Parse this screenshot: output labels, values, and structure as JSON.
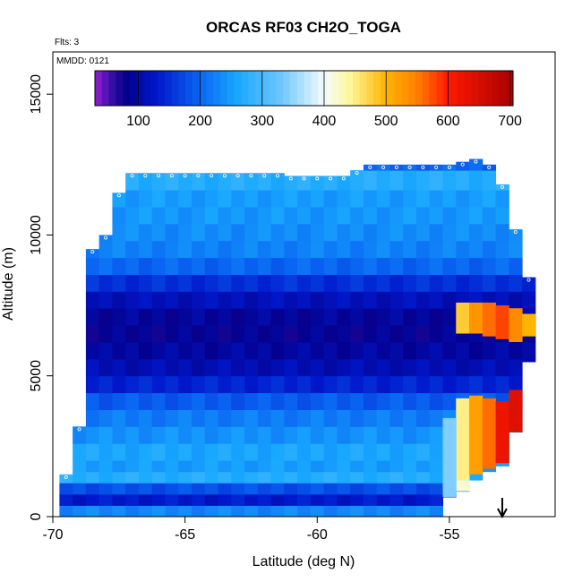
{
  "chart_data": {
    "type": "heatmap",
    "title": "ORCAS RF03 CH2O_TOGA",
    "annotations": [
      "Flts: 3",
      "MMDD: 0121"
    ],
    "xlabel": "Latitude (deg N)",
    "ylabel": "Altitude (m)",
    "xlim": [
      -70,
      -51
    ],
    "ylim": [
      0,
      16500
    ],
    "xticks": [
      -70,
      -65,
      -60,
      -55
    ],
    "yticks": [
      0,
      5000,
      10000,
      15000
    ],
    "legend": "top",
    "grid": false,
    "colorbar": {
      "range": [
        30,
        705
      ],
      "ticks": [
        100,
        200,
        300,
        400,
        500,
        600,
        700
      ],
      "stops": [
        {
          "v": 30,
          "c": "#9a1fd6"
        },
        {
          "v": 55,
          "c": "#3a0fa8"
        },
        {
          "v": 80,
          "c": "#05008c"
        },
        {
          "v": 130,
          "c": "#0018cc"
        },
        {
          "v": 200,
          "c": "#0a66f2"
        },
        {
          "v": 260,
          "c": "#18a8ff"
        },
        {
          "v": 330,
          "c": "#6cc6ff"
        },
        {
          "v": 400,
          "c": "#f2fbff"
        },
        {
          "v": 440,
          "c": "#fff8a0"
        },
        {
          "v": 500,
          "c": "#ffb400"
        },
        {
          "v": 550,
          "c": "#ff8000"
        },
        {
          "v": 600,
          "c": "#ff1a00"
        },
        {
          "v": 705,
          "c": "#a80000"
        }
      ]
    },
    "profile_lat": [
      -69.5,
      -69,
      -68.5,
      -68,
      -67.5,
      -67,
      -66.5,
      -66,
      -65.5,
      -65,
      -64.5,
      -64,
      -63.5,
      -63,
      -62.5,
      -62,
      -61.5,
      -61,
      -60.5,
      -60,
      -59.5,
      -59,
      -58.5,
      -58,
      -57.5,
      -57,
      -56.5,
      -56,
      -55.5,
      -55,
      -54.5,
      -54,
      -53.5,
      -53,
      -52.5,
      -52
    ],
    "profile_top": [
      1500,
      3200,
      9500,
      10000,
      11500,
      12200,
      12200,
      12200,
      12200,
      12200,
      12200,
      12200,
      12200,
      12200,
      12200,
      12200,
      12200,
      12100,
      12100,
      12100,
      12100,
      12100,
      12300,
      12500,
      12500,
      12500,
      12500,
      12500,
      12500,
      12500,
      12600,
      12700,
      12500,
      11800,
      10200,
      8500
    ],
    "profile_bottom": [
      0,
      0,
      0,
      0,
      0,
      0,
      0,
      0,
      0,
      0,
      0,
      0,
      0,
      0,
      0,
      0,
      0,
      0,
      0,
      0,
      0,
      0,
      0,
      0,
      0,
      0,
      0,
      0,
      0,
      700,
      900,
      1300,
      1600,
      1800,
      3000,
      5500
    ],
    "altitude_layers": [
      {
        "z0": 0,
        "z1": 400,
        "value": 230
      },
      {
        "z0": 400,
        "z1": 800,
        "value": 130
      },
      {
        "z0": 800,
        "z1": 1200,
        "value": 180
      },
      {
        "z0": 1200,
        "z1": 1600,
        "value": 270
      },
      {
        "z0": 1600,
        "z1": 2000,
        "value": 250
      },
      {
        "z0": 2000,
        "z1": 2600,
        "value": 260
      },
      {
        "z0": 2600,
        "z1": 3200,
        "value": 240
      },
      {
        "z0": 3200,
        "z1": 3800,
        "value": 220
      },
      {
        "z0": 3800,
        "z1": 4400,
        "value": 190
      },
      {
        "z0": 4400,
        "z1": 5000,
        "value": 140
      },
      {
        "z0": 5000,
        "z1": 5600,
        "value": 110
      },
      {
        "z0": 5600,
        "z1": 6200,
        "value": 95
      },
      {
        "z0": 6200,
        "z1": 6800,
        "value": 85
      },
      {
        "z0": 6800,
        "z1": 7400,
        "value": 90
      },
      {
        "z0": 7400,
        "z1": 8000,
        "value": 115
      },
      {
        "z0": 8000,
        "z1": 8600,
        "value": 150
      },
      {
        "z0": 8600,
        "z1": 9200,
        "value": 200
      },
      {
        "z0": 9200,
        "z1": 9800,
        "value": 225
      },
      {
        "z0": 9800,
        "z1": 10400,
        "value": 235
      },
      {
        "z0": 10400,
        "z1": 11000,
        "value": 245
      },
      {
        "z0": 11000,
        "z1": 11600,
        "value": 250
      },
      {
        "z0": 11600,
        "z1": 12300,
        "value": 270
      },
      {
        "z0": 12300,
        "z1": 12800,
        "value": 200
      }
    ],
    "high_values": [
      {
        "lat": -54.5,
        "z0": 6500,
        "z1": 7600,
        "value": 480
      },
      {
        "lat": -54,
        "z0": 6500,
        "z1": 7600,
        "value": 530
      },
      {
        "lat": -53.5,
        "z0": 6400,
        "z1": 7600,
        "value": 560
      },
      {
        "lat": -53,
        "z0": 6300,
        "z1": 7500,
        "value": 580
      },
      {
        "lat": -52.5,
        "z0": 6200,
        "z1": 7400,
        "value": 540
      },
      {
        "lat": -52,
        "z0": 6400,
        "z1": 7200,
        "value": 500
      },
      {
        "lat": -54.5,
        "z0": 1300,
        "z1": 4200,
        "value": 450
      },
      {
        "lat": -54,
        "z0": 1500,
        "z1": 4300,
        "value": 520
      },
      {
        "lat": -53.5,
        "z0": 1700,
        "z1": 4200,
        "value": 560
      },
      {
        "lat": -53,
        "z0": 1900,
        "z1": 4100,
        "value": 620
      },
      {
        "lat": -52.5,
        "z0": 3000,
        "z1": 4500,
        "value": 640
      },
      {
        "lat": -54.5,
        "z0": 900,
        "z1": 1300,
        "value": 420
      },
      {
        "lat": -55,
        "z0": 700,
        "z1": 3500,
        "value": 340
      }
    ],
    "arrow_lat": -53
  }
}
